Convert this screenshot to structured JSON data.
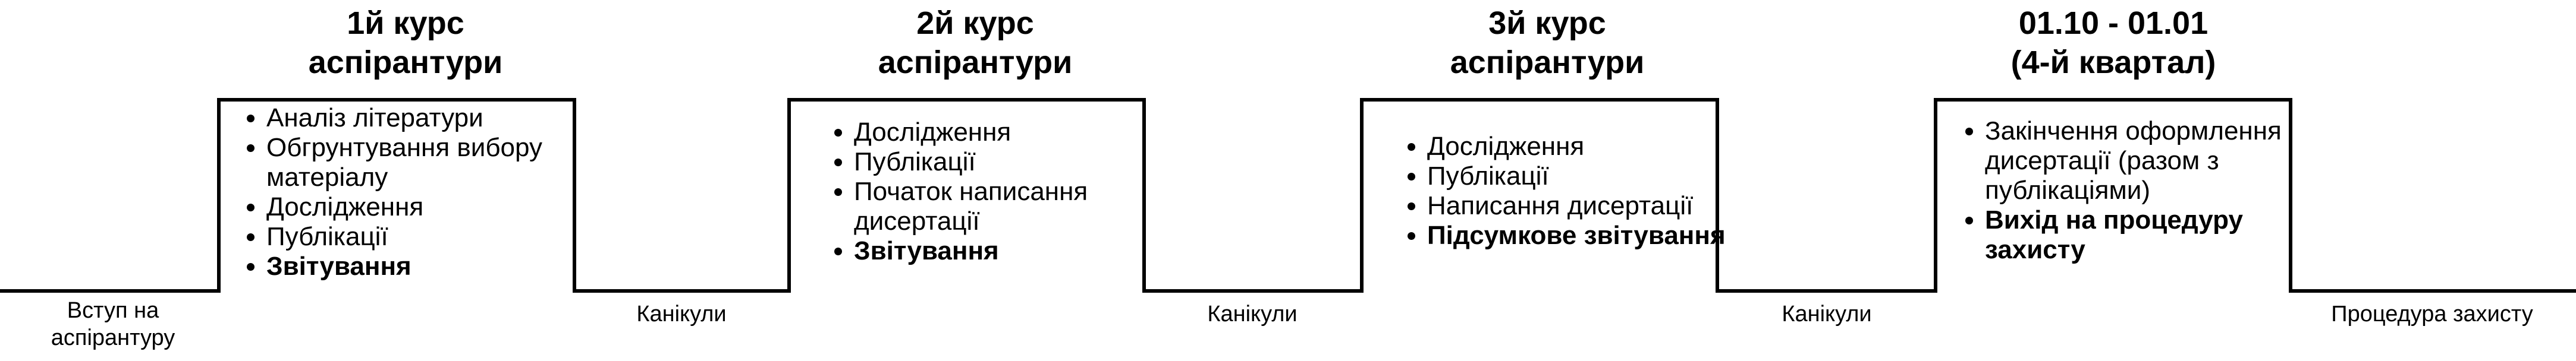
{
  "years": [
    {
      "title_line1": "1й курс",
      "title_line2": "аспірантури",
      "tasks": [
        {
          "text": "Аналіз літератури",
          "bold": false
        },
        {
          "text": "Обгрунтування вибору матеріалу",
          "bold": false
        },
        {
          "text": "Дослідження",
          "bold": false
        },
        {
          "text": "Публікації",
          "bold": false
        },
        {
          "text": "Звітування",
          "bold": true
        }
      ]
    },
    {
      "title_line1": "2й курс",
      "title_line2": "аспірантури",
      "tasks": [
        {
          "text": "Дослідження",
          "bold": false
        },
        {
          "text": "Публікації",
          "bold": false
        },
        {
          "text": "Початок написання дисертації",
          "bold": false
        },
        {
          "text": "Звітування",
          "bold": true
        }
      ]
    },
    {
      "title_line1": "3й курс",
      "title_line2": "аспірантури",
      "tasks": [
        {
          "text": "Дослідження",
          "bold": false
        },
        {
          "text": "Публікації",
          "bold": false
        },
        {
          "text": "Написання дисертації",
          "bold": false
        },
        {
          "text": "Підсумкове звітування",
          "bold": true
        }
      ]
    },
    {
      "title_line1": "01.10 - 01.01",
      "title_line2": "(4-й квартал)",
      "tasks": [
        {
          "text": "Закінчення оформлення дисертації (разом з публікаціями)",
          "bold": false
        },
        {
          "text": "Вихід на процедуру захисту",
          "bold": true
        }
      ]
    }
  ],
  "phases": {
    "start_line1": "Вступ на",
    "start_line2": "аспірантуру",
    "break1": "Канікули",
    "break2": "Канікули",
    "break3": "Канікули",
    "end": "Процедура захисту"
  },
  "colors": {
    "line": "#000000",
    "text": "#000000",
    "background": "#ffffff"
  }
}
